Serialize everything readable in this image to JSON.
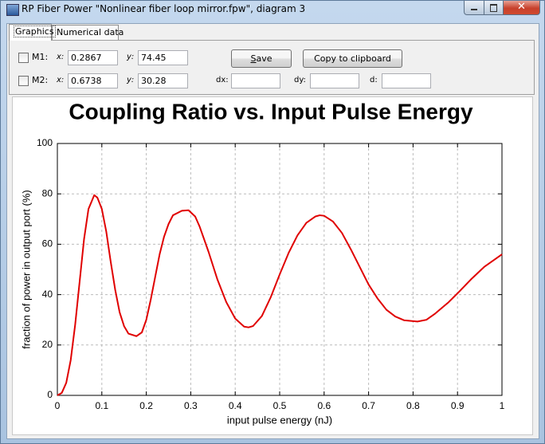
{
  "window": {
    "title": "RP Fiber Power \"Nonlinear fiber loop mirror.fpw\", diagram 3"
  },
  "tabs": [
    "Graphics",
    "Numerical data"
  ],
  "markers": [
    {
      "label": "M1:",
      "x_label": "x:",
      "x": 0.2867,
      "y_label": "y:",
      "y": 74.45
    },
    {
      "label": "M2:",
      "x_label": "x:",
      "x": 0.6738,
      "y_label": "y:",
      "y": 30.28
    }
  ],
  "buttons": [
    "Save",
    "Copy to clipboard"
  ],
  "deltas": [
    "dx:",
    "dy:",
    "d:"
  ],
  "chart_data": {
    "type": "line",
    "title": "Coupling Ratio vs. Input Pulse Energy",
    "x_label": "input pulse energy (nJ)",
    "y_label": "fraction of power in output port (%)",
    "x": [
      0,
      0.01,
      0.02,
      0.03,
      0.04,
      0.05,
      0.06,
      0.07,
      0.083,
      0.09,
      0.1,
      0.11,
      0.12,
      0.13,
      0.14,
      0.15,
      0.16,
      0.178,
      0.19,
      0.2,
      0.21,
      0.22,
      0.23,
      0.24,
      0.25,
      0.26,
      0.28,
      0.295,
      0.31,
      0.32,
      0.34,
      0.36,
      0.38,
      0.4,
      0.42,
      0.43,
      0.44,
      0.46,
      0.48,
      0.5,
      0.52,
      0.54,
      0.56,
      0.58,
      0.59,
      0.6,
      0.62,
      0.64,
      0.66,
      0.68,
      0.7,
      0.72,
      0.74,
      0.76,
      0.78,
      0.81,
      0.83,
      0.85,
      0.88,
      0.9,
      0.93,
      0.96,
      1
    ],
    "series": [
      {
        "name": "coupling ratio",
        "color": "#e00000",
        "values": [
          0,
          1,
          5,
          14,
          28,
          45,
          62,
          74,
          79.5,
          78.5,
          74,
          65,
          53,
          42,
          33,
          27.5,
          24.5,
          23.5,
          25,
          30,
          38,
          47,
          56,
          63,
          68,
          71.5,
          73.3,
          73.5,
          71,
          67,
          57,
          46,
          37,
          30.5,
          27.3,
          27,
          27.5,
          31.5,
          39,
          48,
          56.5,
          63.5,
          68.5,
          71,
          71.5,
          71.3,
          69,
          64.5,
          58,
          51,
          44,
          38.5,
          34,
          31.3,
          29.8,
          29.3,
          30,
          32.5,
          37,
          40.5,
          46,
          51,
          56
        ]
      }
    ],
    "xlim": [
      0,
      1
    ],
    "ylim": [
      0,
      100
    ],
    "xticks": [
      0,
      0.1,
      0.2,
      0.3,
      0.4,
      0.5,
      0.6,
      0.7,
      0.8,
      0.9,
      1
    ],
    "yticks": [
      0,
      20,
      40,
      60,
      80,
      100
    ],
    "grid": true
  }
}
